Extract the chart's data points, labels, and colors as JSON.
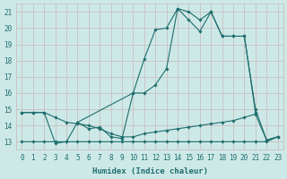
{
  "xlabel": "Humidex (Indice chaleur)",
  "xlim": [
    -0.5,
    23.5
  ],
  "ylim": [
    12.5,
    21.5
  ],
  "yticks": [
    13,
    14,
    15,
    16,
    17,
    18,
    19,
    20,
    21
  ],
  "xticks": [
    0,
    1,
    2,
    3,
    4,
    5,
    6,
    7,
    8,
    9,
    10,
    11,
    12,
    13,
    14,
    15,
    16,
    17,
    18,
    19,
    20,
    21,
    22,
    23
  ],
  "bg_color": "#cde9e7",
  "grid_color": "#c8b8b8",
  "line_color": "#1e6e6e",
  "line1_x": [
    0,
    1,
    2,
    3,
    4,
    5,
    6,
    7,
    8,
    9,
    10,
    11,
    12,
    13,
    14,
    15,
    16,
    17,
    18,
    19,
    20,
    21,
    22,
    23
  ],
  "line1_y": [
    13.0,
    13.0,
    13.0,
    13.0,
    13.0,
    13.0,
    13.0,
    13.0,
    13.0,
    13.0,
    13.0,
    13.0,
    13.0,
    13.0,
    13.0,
    13.0,
    13.0,
    13.0,
    13.0,
    13.0,
    13.0,
    13.0,
    13.0,
    13.3
  ],
  "line2_x": [
    0,
    1,
    2,
    3,
    4,
    5,
    6,
    7,
    8,
    9,
    10,
    11,
    12,
    13,
    14,
    15,
    16,
    17,
    18,
    19,
    20,
    21,
    22,
    23
  ],
  "line2_y": [
    14.8,
    14.8,
    14.8,
    14.5,
    14.2,
    14.1,
    14.0,
    13.8,
    13.5,
    13.3,
    13.3,
    13.5,
    13.6,
    13.7,
    13.8,
    13.9,
    14.0,
    14.1,
    14.2,
    14.3,
    14.5,
    14.7,
    13.1,
    13.3
  ],
  "line3_x": [
    0,
    1,
    2,
    3,
    4,
    5,
    6,
    7,
    8,
    9,
    10,
    11,
    12,
    13,
    14,
    15,
    16,
    17,
    18,
    19,
    20,
    21,
    22,
    23
  ],
  "line3_y": [
    14.8,
    14.8,
    14.8,
    12.9,
    13.0,
    14.2,
    13.8,
    13.9,
    13.3,
    13.2,
    16.0,
    18.1,
    19.9,
    20.0,
    21.2,
    20.5,
    19.8,
    21.0,
    19.5,
    19.5,
    19.5,
    15.0,
    13.1,
    13.3
  ],
  "line4_x": [
    5,
    10,
    11,
    12,
    13,
    14,
    15,
    16,
    17,
    18,
    19,
    20,
    21
  ],
  "line4_y": [
    14.2,
    16.0,
    16.0,
    16.5,
    17.5,
    21.2,
    21.0,
    20.5,
    21.0,
    19.5,
    19.5,
    19.5,
    14.8
  ]
}
